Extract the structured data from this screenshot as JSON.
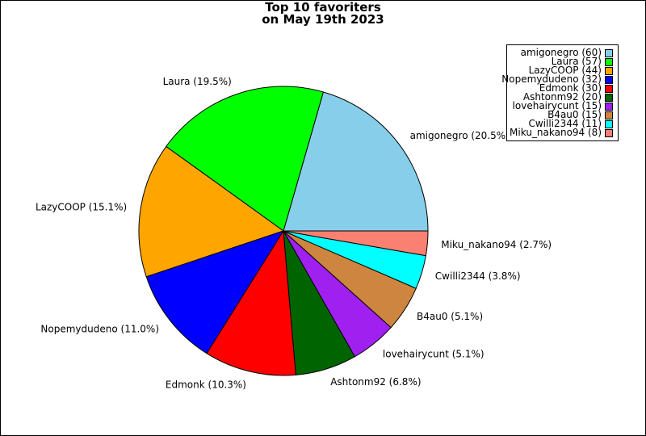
{
  "chart_data": {
    "type": "pie",
    "title_line1": "Top 10 favoriters",
    "title_line2": "on May 19th 2023",
    "legend_placement": "top-right",
    "slices": [
      {
        "name": "amigonegro",
        "value": 60,
        "percent_label": "amigonegro (20.5%)",
        "legend_label": "amigonegro (60)",
        "color": "#87CEEB"
      },
      {
        "name": "Laura",
        "value": 57,
        "percent_label": "Laura (19.5%)",
        "legend_label": "Laura (57)",
        "color": "#00FF00"
      },
      {
        "name": "LazyCOOP",
        "value": 44,
        "percent_label": "LazyCOOP (15.1%)",
        "legend_label": "LazyCOOP (44)",
        "color": "#FFA500"
      },
      {
        "name": "Nopemydudeno",
        "value": 32,
        "percent_label": "Nopemydudeno (11.0%)",
        "legend_label": "Nopemydudeno (32)",
        "color": "#0000FF"
      },
      {
        "name": "Edmonk",
        "value": 30,
        "percent_label": "Edmonk (10.3%)",
        "legend_label": "Edmonk (30)",
        "color": "#FF0000"
      },
      {
        "name": "Ashtonm92",
        "value": 20,
        "percent_label": "Ashtonm92 (6.8%)",
        "legend_label": "Ashtonm92 (20)",
        "color": "#006400"
      },
      {
        "name": "lovehairycunt",
        "value": 15,
        "percent_label": "lovehairycunt (5.1%)",
        "legend_label": "lovehairycunt (15)",
        "color": "#A020F0"
      },
      {
        "name": "B4au0",
        "value": 15,
        "percent_label": "B4au0 (5.1%)",
        "legend_label": "B4au0 (15)",
        "color": "#CD853F"
      },
      {
        "name": "Cwilli2344",
        "value": 11,
        "percent_label": "Cwilli2344 (3.8%)",
        "legend_label": "Cwilli2344 (11)",
        "color": "#00FFFF"
      },
      {
        "name": "Miku_nakano94",
        "value": 8,
        "percent_label": "Miku_nakano94 (2.7%)",
        "legend_label": "Miku_nakano94 (8)",
        "color": "#FA8072"
      }
    ]
  }
}
